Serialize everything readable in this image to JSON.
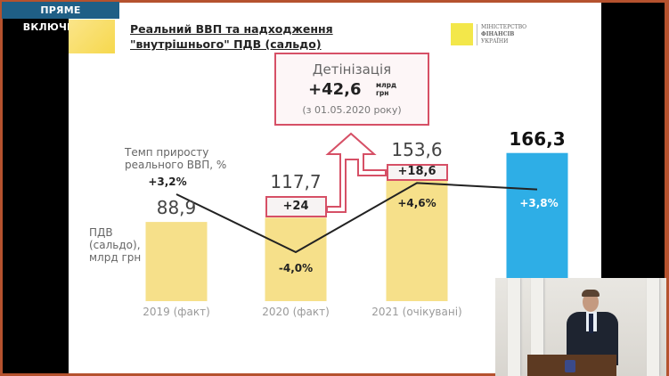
{
  "broadcast": {
    "badge": "ПРЯМЕ ВКЛЮЧЕННЯ",
    "frame_color": "#b5522e",
    "badge_color": "#1f5f86"
  },
  "slide": {
    "title_line1": "Реальний ВВП та надходження",
    "title_line2": "\"внутрішнього\" ПДВ (сальдо)",
    "logo": {
      "line1": "МІНІСТЕРСТВО",
      "line2": "ФІНАНСІВ",
      "line3": "УКРАЇНИ"
    },
    "callout": {
      "title": "Детінізація",
      "value": "+42,6",
      "unit1": "млрд",
      "unit2": "грн",
      "date": "(з 01.05.2020 року)"
    },
    "gdp_label": [
      "Темп приросту",
      "реального ВВП, %"
    ],
    "vat_label": [
      "ПДВ",
      "(сальдо),",
      "млрд грн"
    ]
  },
  "chart_data": {
    "type": "bar",
    "categories": [
      "2019 (факт)",
      "2020 (факт)",
      "2021 (очікувані)",
      ""
    ],
    "series": [
      {
        "name": "ПДВ (сальдо), млрд грн",
        "type": "bar",
        "values": [
          88.9,
          117.7,
          153.6,
          166.3
        ],
        "labels": [
          "88,9",
          "117,7",
          "153,6",
          "166,3"
        ],
        "colors": [
          "#f6e08a",
          "#f6e08a",
          "#f6e08a",
          "#2eaee6"
        ]
      },
      {
        "name": "Темп приросту реального ВВП, %",
        "type": "line",
        "values": [
          3.2,
          -4.0,
          4.6,
          3.8
        ],
        "labels": [
          "+3,2%",
          "-4,0%",
          "+4,6%",
          "+3,8%"
        ],
        "color": "#222222"
      }
    ],
    "increments": {
      "values": [
        null,
        24,
        18.6,
        null
      ],
      "labels": [
        "",
        "+24",
        "+18,6",
        ""
      ],
      "color": "#d65066"
    },
    "grid": false
  }
}
